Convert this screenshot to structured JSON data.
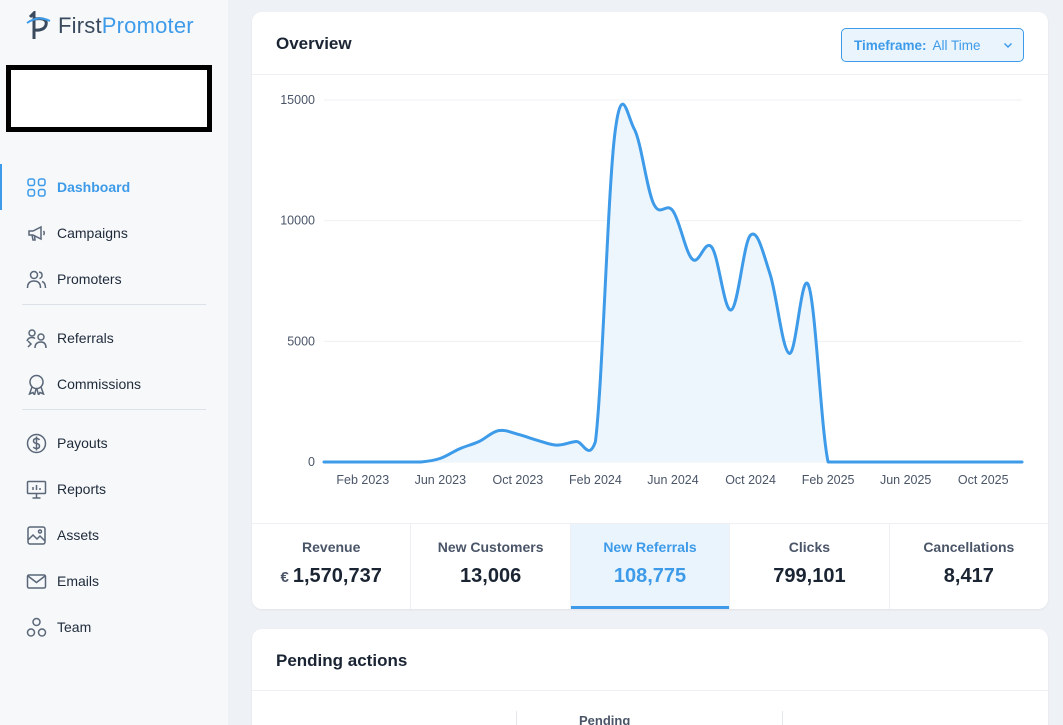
{
  "brand": {
    "name_first": "First",
    "name_second": "Promoter"
  },
  "sidebar": {
    "items": [
      {
        "label": "Dashboard",
        "icon": "grid-icon",
        "active": true
      },
      {
        "label": "Campaigns",
        "icon": "megaphone-icon"
      },
      {
        "label": "Promoters",
        "icon": "users-icon"
      },
      {
        "label": "Referrals",
        "icon": "user-share-icon"
      },
      {
        "label": "Commissions",
        "icon": "award-icon"
      },
      {
        "label": "Payouts",
        "icon": "dollar-circle-icon"
      },
      {
        "label": "Reports",
        "icon": "presentation-icon"
      },
      {
        "label": "Assets",
        "icon": "image-icon"
      },
      {
        "label": "Emails",
        "icon": "mail-icon"
      },
      {
        "label": "Team",
        "icon": "team-icon"
      }
    ]
  },
  "overview": {
    "title": "Overview",
    "timeframe": {
      "label": "Timeframe:",
      "value": "All Time"
    }
  },
  "chart_data": {
    "type": "line",
    "x": [
      "Dec 2022",
      "Jan 2023",
      "Feb 2023",
      "Mar 2023",
      "Apr 2023",
      "May 2023",
      "Jun 2023",
      "Jul 2023",
      "Aug 2023",
      "Sep 2023",
      "Oct 2023",
      "Nov 2023",
      "Dec 2023",
      "Jan 2024",
      "Feb 2024",
      "Mar 2024",
      "Apr 2024",
      "May 2024",
      "Jun 2024",
      "Jul 2024",
      "Aug 2024",
      "Sep 2024",
      "Oct 2024",
      "Nov 2024",
      "Dec 2024",
      "Jan 2025",
      "Feb 2025",
      "Mar 2025",
      "Apr 2025",
      "May 2025",
      "Jun 2025",
      "Jul 2025",
      "Aug 2025",
      "Sep 2025",
      "Oct 2025",
      "Nov 2025",
      "Dec 2025"
    ],
    "series": [
      {
        "values": [
          0,
          0,
          0,
          0,
          0,
          0,
          150,
          550,
          850,
          1300,
          1150,
          900,
          700,
          850,
          850,
          13600,
          13800,
          10700,
          10400,
          8400,
          8900,
          6300,
          9400,
          7800,
          4500,
          7300,
          0,
          0,
          0,
          0,
          0,
          0,
          0,
          0,
          0,
          0,
          0
        ]
      }
    ],
    "xtick_labels": [
      "Feb 2023",
      "Jun 2023",
      "Oct 2023",
      "Feb 2024",
      "Jun 2024",
      "Oct 2024",
      "Feb 2025",
      "Jun 2025",
      "Oct 2025"
    ],
    "ytick_labels": [
      "0",
      "5000",
      "10000",
      "15000"
    ],
    "ylim": [
      0,
      15000
    ],
    "grid": true,
    "color": "#3d9be9"
  },
  "stats": [
    {
      "label": "Revenue",
      "currency": "€",
      "value": "1,570,737"
    },
    {
      "label": "New Customers",
      "value": "13,006"
    },
    {
      "label": "New Referrals",
      "value": "108,775",
      "active": true
    },
    {
      "label": "Clicks",
      "value": "799,101"
    },
    {
      "label": "Cancellations",
      "value": "8,417"
    }
  ],
  "pending": {
    "title": "Pending actions",
    "column_label": "Pending"
  }
}
